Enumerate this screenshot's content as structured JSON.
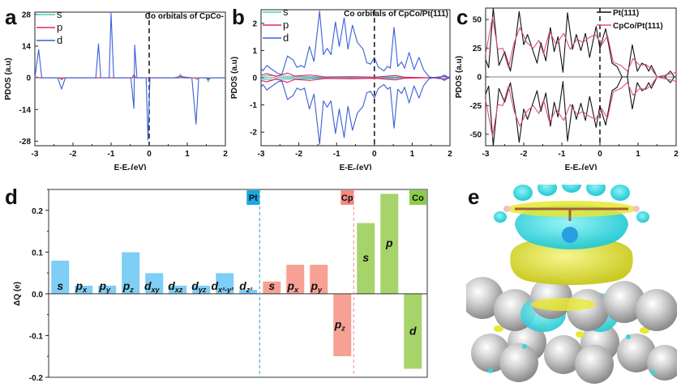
{
  "panels": {
    "a": "a",
    "b": "b",
    "c": "c",
    "d": "d",
    "e": "e"
  },
  "chart_data": [
    {
      "id": "a",
      "type": "line",
      "title": "Co orbitals of CpCo-",
      "xlabel": "E-E_F(eV)",
      "ylabel": "PDOS (a.u)",
      "xlim": [
        -3,
        2
      ],
      "ylim": [
        -30,
        29
      ],
      "xticks": [
        -3,
        -2,
        -1,
        0,
        1,
        2
      ],
      "yticks": [
        -28,
        -14,
        0,
        14,
        28
      ],
      "fermi_line_x": 0,
      "legend": "top-left",
      "series": [
        {
          "name": "s",
          "color": "#40d0c0",
          "points": [
            [
              -3,
              0
            ],
            [
              -2.4,
              0
            ],
            [
              -2.3,
              -0.4
            ],
            [
              -2.2,
              0
            ],
            [
              -0.45,
              0
            ],
            [
              -0.4,
              1.5
            ],
            [
              -0.35,
              0
            ],
            [
              0.75,
              0
            ],
            [
              0.82,
              1.5
            ],
            [
              0.9,
              0
            ],
            [
              1.5,
              0
            ],
            [
              1.55,
              -1.8
            ],
            [
              1.6,
              0
            ],
            [
              2,
              0
            ]
          ]
        },
        {
          "name": "p",
          "color": "#e8206a",
          "points": [
            [
              -3,
              0
            ],
            [
              -2.95,
              0.4
            ],
            [
              -2.9,
              0
            ],
            [
              -2.35,
              0
            ],
            [
              -2.3,
              -0.8
            ],
            [
              -2.25,
              0
            ],
            [
              -0.45,
              0
            ],
            [
              -0.4,
              1.2
            ],
            [
              -0.35,
              0
            ],
            [
              0.75,
              0
            ],
            [
              0.82,
              0.8
            ],
            [
              0.9,
              0
            ],
            [
              1.2,
              0
            ],
            [
              1.25,
              -0.6
            ],
            [
              1.3,
              0
            ],
            [
              1.5,
              0
            ],
            [
              1.55,
              -0.8
            ],
            [
              1.6,
              0
            ],
            [
              2,
              0
            ]
          ]
        },
        {
          "name": "d",
          "color": "#3a5fd8",
          "points": [
            [
              -3,
              0
            ],
            [
              -2.9,
              12.5
            ],
            [
              -2.82,
              0
            ],
            [
              -2.4,
              0
            ],
            [
              -2.3,
              -5
            ],
            [
              -2.2,
              0
            ],
            [
              -1.4,
              0
            ],
            [
              -1.33,
              15
            ],
            [
              -1.27,
              0
            ],
            [
              -1.05,
              0
            ],
            [
              -1.0,
              28.5
            ],
            [
              -0.93,
              0
            ],
            [
              -0.48,
              0
            ],
            [
              -0.4,
              -13.5
            ],
            [
              -0.38,
              14.5
            ],
            [
              -0.32,
              0
            ],
            [
              -0.08,
              0
            ],
            [
              -0.03,
              -27.5
            ],
            [
              0.02,
              0
            ],
            [
              0.65,
              0
            ],
            [
              0.82,
              0.5
            ],
            [
              1.12,
              0
            ],
            [
              1.23,
              -20.5
            ],
            [
              1.3,
              0
            ],
            [
              1.5,
              0
            ],
            [
              1.55,
              -0.5
            ],
            [
              1.6,
              0
            ],
            [
              2,
              0
            ]
          ]
        }
      ]
    },
    {
      "id": "b",
      "type": "line",
      "title": "Co orbitals of CpCo/Pt(111)",
      "xlabel": "E-E_F(eV)",
      "ylabel": "PDOS (a.u)",
      "xlim": [
        -3,
        2
      ],
      "ylim": [
        -2.5,
        2.5
      ],
      "xticks": [
        -3,
        -2,
        -1,
        0,
        1,
        2
      ],
      "yticks": [
        -2,
        -1,
        0,
        1,
        2
      ],
      "fermi_line_x": 0,
      "legend": "top-left",
      "mirrored": true,
      "series": [
        {
          "name": "s",
          "color": "#40d0c0",
          "points": [
            [
              -3,
              0.05
            ],
            [
              -2.8,
              0.08
            ],
            [
              -2.5,
              0.06
            ],
            [
              -2.2,
              0.05
            ],
            [
              -1.7,
              0.04
            ],
            [
              -1.0,
              0.02
            ],
            [
              0,
              0.02
            ],
            [
              0.5,
              0.03
            ],
            [
              1.0,
              0.01
            ],
            [
              1.5,
              0
            ],
            [
              2,
              0
            ]
          ]
        },
        {
          "name": "p",
          "color": "#e8206a",
          "points": [
            [
              -3,
              0.1
            ],
            [
              -2.85,
              0.15
            ],
            [
              -2.6,
              0.05
            ],
            [
              -2.3,
              0.17
            ],
            [
              -2.1,
              0.06
            ],
            [
              -1.7,
              0.1
            ],
            [
              -1.3,
              0.03
            ],
            [
              -0.6,
              0.04
            ],
            [
              0,
              0.02
            ],
            [
              0.55,
              0.08
            ],
            [
              0.8,
              0.02
            ],
            [
              1.5,
              0
            ],
            [
              1.85,
              0.05
            ],
            [
              2,
              0
            ]
          ]
        },
        {
          "name": "d",
          "color": "#3a5fd8",
          "points": [
            [
              -3,
              0.35
            ],
            [
              -2.95,
              0.25
            ],
            [
              -2.85,
              0.45
            ],
            [
              -2.7,
              0.3
            ],
            [
              -2.55,
              0.15
            ],
            [
              -2.45,
              0.12
            ],
            [
              -2.3,
              0.8
            ],
            [
              -2.15,
              0.65
            ],
            [
              -2.05,
              0.38
            ],
            [
              -1.95,
              0.45
            ],
            [
              -1.85,
              0.38
            ],
            [
              -1.72,
              1.15
            ],
            [
              -1.6,
              0.6
            ],
            [
              -1.45,
              2.45
            ],
            [
              -1.35,
              0.85
            ],
            [
              -1.25,
              1.08
            ],
            [
              -1.15,
              0.85
            ],
            [
              -1.03,
              2.05
            ],
            [
              -0.93,
              1.15
            ],
            [
              -0.8,
              2.2
            ],
            [
              -0.7,
              1.05
            ],
            [
              -0.58,
              1.93
            ],
            [
              -0.45,
              1.3
            ],
            [
              -0.3,
              1.05
            ],
            [
              -0.2,
              0.55
            ],
            [
              -0.1,
              0.5
            ],
            [
              0,
              0.75
            ],
            [
              0.1,
              0.4
            ],
            [
              0.25,
              0.25
            ],
            [
              0.35,
              0.42
            ],
            [
              0.42,
              0.35
            ],
            [
              0.52,
              1.85
            ],
            [
              0.62,
              0.42
            ],
            [
              0.72,
              0.58
            ],
            [
              0.8,
              0.35
            ],
            [
              0.92,
              0.93
            ],
            [
              1.05,
              0.3
            ],
            [
              1.18,
              0.75
            ],
            [
              1.3,
              0.3
            ],
            [
              1.45,
              0.03
            ],
            [
              1.6,
              0
            ],
            [
              1.75,
              0.02
            ],
            [
              1.85,
              0.1
            ],
            [
              1.95,
              0.02
            ],
            [
              2,
              0.02
            ]
          ]
        }
      ]
    },
    {
      "id": "c",
      "type": "line",
      "title": "",
      "xlabel": "E-E_F(eV)",
      "ylabel": "PDOS (a.u)",
      "xlim": [
        -3,
        2
      ],
      "ylim": [
        -60,
        60
      ],
      "xticks": [
        -3,
        -2,
        -1,
        0,
        1,
        2
      ],
      "yticks": [
        -50,
        -25,
        0,
        25,
        50
      ],
      "fermi_line_x": 0,
      "legend": "top-right",
      "mirrored": true,
      "series": [
        {
          "name": "Pt(111)",
          "color": "#111111",
          "points": [
            [
              -3,
              15
            ],
            [
              -2.92,
              8
            ],
            [
              -2.8,
              60
            ],
            [
              -2.65,
              10
            ],
            [
              -2.5,
              22
            ],
            [
              -2.35,
              5
            ],
            [
              -2.2,
              35
            ],
            [
              -2.12,
              57
            ],
            [
              -2.0,
              28
            ],
            [
              -1.9,
              37
            ],
            [
              -1.75,
              22
            ],
            [
              -1.65,
              12
            ],
            [
              -1.55,
              30
            ],
            [
              -1.42,
              14
            ],
            [
              -1.3,
              43
            ],
            [
              -1.2,
              22
            ],
            [
              -1.1,
              35
            ],
            [
              -0.97,
              4
            ],
            [
              -0.85,
              56
            ],
            [
              -0.72,
              24
            ],
            [
              -0.62,
              37
            ],
            [
              -0.5,
              23
            ],
            [
              -0.38,
              38
            ],
            [
              -0.27,
              17
            ],
            [
              -0.1,
              44
            ],
            [
              0,
              25
            ],
            [
              0.15,
              42
            ],
            [
              0.32,
              12
            ],
            [
              0.45,
              9
            ],
            [
              0.58,
              0
            ],
            [
              0.72,
              0
            ],
            [
              0.85,
              28
            ],
            [
              0.98,
              5
            ],
            [
              1.1,
              12
            ],
            [
              1.2,
              10
            ],
            [
              1.28,
              5
            ],
            [
              1.35,
              10
            ],
            [
              1.5,
              0
            ],
            [
              1.7,
              0
            ],
            [
              1.85,
              5
            ],
            [
              1.95,
              0
            ],
            [
              2,
              0
            ]
          ]
        },
        {
          "name": "CpCo/Pt(111)",
          "color": "#e0507a",
          "points": [
            [
              -3,
              20
            ],
            [
              -2.82,
              52
            ],
            [
              -2.68,
              24
            ],
            [
              -2.55,
              25
            ],
            [
              -2.4,
              8
            ],
            [
              -2.25,
              30
            ],
            [
              -2.1,
              43
            ],
            [
              -1.92,
              30
            ],
            [
              -1.75,
              25
            ],
            [
              -1.6,
              32
            ],
            [
              -1.48,
              20
            ],
            [
              -1.32,
              40
            ],
            [
              -1.15,
              28
            ],
            [
              -0.95,
              38
            ],
            [
              -0.78,
              24
            ],
            [
              -0.6,
              33
            ],
            [
              -0.45,
              30
            ],
            [
              -0.3,
              34
            ],
            [
              -0.12,
              37
            ],
            [
              0.05,
              28
            ],
            [
              0.2,
              36
            ],
            [
              0.35,
              13
            ],
            [
              0.55,
              10
            ],
            [
              0.72,
              5
            ],
            [
              0.87,
              16
            ],
            [
              1.05,
              10
            ],
            [
              1.2,
              11
            ],
            [
              1.35,
              7
            ],
            [
              1.5,
              0
            ],
            [
              1.75,
              2
            ],
            [
              1.9,
              3
            ],
            [
              2,
              4
            ]
          ]
        }
      ]
    },
    {
      "id": "d",
      "type": "bar",
      "title": "",
      "xlabel": "",
      "ylabel": "ΔQ (e)",
      "ylim": [
        -0.2,
        0.25
      ],
      "yticks": [
        "0.2",
        "0.1",
        "0.0",
        "-0.1",
        "-0.2"
      ],
      "groups": [
        {
          "name": "Pt",
          "color": "#1aa8e0",
          "bar_color": "#7ecef5",
          "bars": [
            {
              "label": "s",
              "sub": "",
              "value": 0.08
            },
            {
              "label": "p",
              "sub": "x",
              "value": 0.02
            },
            {
              "label": "p",
              "sub": "y",
              "value": 0.02
            },
            {
              "label": "p",
              "sub": "z",
              "value": 0.1
            },
            {
              "label": "d",
              "sub": "xy",
              "value": 0.05
            },
            {
              "label": "d",
              "sub": "xz",
              "value": 0.02
            },
            {
              "label": "d",
              "sub": "yz",
              "value": 0.02
            },
            {
              "label": "d",
              "sub": "x²-y²",
              "value": 0.05
            },
            {
              "label": "d",
              "sub": "z²",
              "value": 0.01
            }
          ]
        },
        {
          "name": "Cp",
          "color": "#f28b82",
          "bar_color": "#f7a194",
          "bars": [
            {
              "label": "s",
              "sub": "",
              "value": 0.03
            },
            {
              "label": "p",
              "sub": "x",
              "value": 0.07
            },
            {
              "label": "p",
              "sub": "y",
              "value": 0.07
            },
            {
              "label": "p",
              "sub": "z",
              "value": -0.15
            }
          ]
        },
        {
          "name": "Co",
          "color": "#8ccc4a",
          "bar_color": "#a6d46a",
          "bars": [
            {
              "label": "s",
              "sub": "",
              "value": 0.17
            },
            {
              "label": "p",
              "sub": "",
              "value": 0.24
            },
            {
              "label": "d",
              "sub": "",
              "value": -0.18
            }
          ]
        }
      ]
    }
  ],
  "image_e": {
    "description": "charge density difference isosurface of CpCo on Pt(111)",
    "colors": {
      "accumulation": "#e8e830",
      "depletion": "#30d8e0",
      "pt_atom": "#bdbdbd"
    }
  }
}
